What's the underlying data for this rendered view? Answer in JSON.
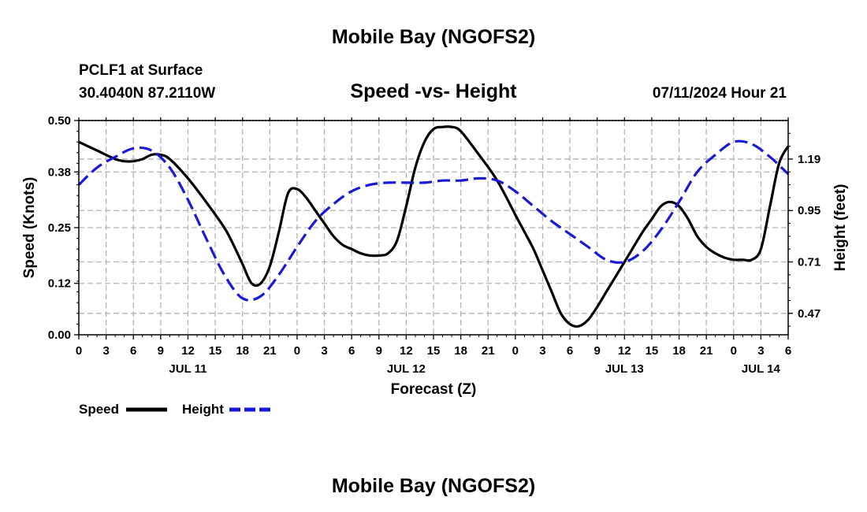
{
  "page": {
    "title_top": "Mobile Bay (NGOFS2)",
    "title_bottom": "Mobile Bay (NGOFS2)",
    "station": "PCLF1 at Surface",
    "coords": "30.4040N  87.2110W",
    "datetime": "07/11/2024 Hour 21"
  },
  "colors": {
    "speed": "#000000",
    "height": "#1a1ad6",
    "grid": "#b4b4b4"
  },
  "chart_data": {
    "type": "line",
    "title": "Speed -vs- Height",
    "xlabel": "Forecast (Z)",
    "ylabel_left": "Speed (Knots)",
    "ylabel_right": "Height (feet)",
    "x_range_hours": [
      0,
      78
    ],
    "x_tick_labels": [
      "0",
      "3",
      "6",
      "9",
      "12",
      "15",
      "18",
      "21",
      "0",
      "3",
      "6",
      "9",
      "12",
      "15",
      "18",
      "21",
      "0",
      "3",
      "6",
      "9",
      "12",
      "15",
      "18",
      "21",
      "0",
      "3",
      "6"
    ],
    "date_labels": [
      {
        "label": "JUL 11",
        "hour": 12
      },
      {
        "label": "JUL 12",
        "hour": 36
      },
      {
        "label": "JUL 13",
        "hour": 60
      },
      {
        "label": "JUL 14",
        "hour": 75
      }
    ],
    "y_left": {
      "range": [
        0.0,
        0.5
      ],
      "ticks": [
        0.0,
        0.12,
        0.25,
        0.38,
        0.5
      ],
      "tick_labels": [
        "0.00",
        "0.12",
        "0.25",
        "0.38",
        "0.50"
      ]
    },
    "y_right": {
      "range": [
        0.37,
        1.37
      ],
      "ticks": [
        0.47,
        0.71,
        0.95,
        1.19
      ],
      "tick_labels": [
        "0.47",
        "0.71",
        "0.95",
        "1.19"
      ]
    },
    "series": [
      {
        "name": "Speed",
        "axis": "left",
        "style": "solid",
        "x": [
          0,
          2,
          4,
          5,
          6,
          7,
          8,
          9,
          10,
          12,
          14,
          16,
          17,
          18,
          19,
          20,
          21,
          22,
          23,
          24,
          25,
          26,
          27,
          28,
          29,
          30,
          31,
          32,
          33,
          34,
          35,
          36,
          37,
          38,
          39,
          40,
          41,
          42,
          44,
          46,
          48,
          49,
          50,
          51,
          52,
          53,
          54,
          55,
          56,
          57,
          58,
          59,
          60,
          61,
          62,
          63,
          64,
          65,
          66,
          67,
          68,
          69,
          70,
          71,
          72,
          73,
          74,
          75,
          76,
          77,
          78
        ],
        "values": [
          0.45,
          0.43,
          0.41,
          0.405,
          0.405,
          0.41,
          0.42,
          0.42,
          0.41,
          0.365,
          0.31,
          0.25,
          0.21,
          0.165,
          0.12,
          0.12,
          0.16,
          0.24,
          0.33,
          0.34,
          0.32,
          0.29,
          0.26,
          0.23,
          0.21,
          0.2,
          0.19,
          0.185,
          0.185,
          0.19,
          0.22,
          0.3,
          0.39,
          0.45,
          0.48,
          0.485,
          0.485,
          0.475,
          0.42,
          0.36,
          0.28,
          0.24,
          0.2,
          0.15,
          0.1,
          0.05,
          0.025,
          0.02,
          0.035,
          0.065,
          0.1,
          0.135,
          0.17,
          0.205,
          0.24,
          0.27,
          0.3,
          0.31,
          0.3,
          0.27,
          0.23,
          0.205,
          0.19,
          0.18,
          0.175,
          0.175,
          0.175,
          0.2,
          0.3,
          0.4,
          0.44
        ]
      },
      {
        "name": "Height",
        "axis": "right",
        "style": "dashed",
        "x": [
          0,
          2,
          4,
          6,
          8,
          10,
          12,
          14,
          16,
          18,
          20,
          22,
          24,
          26,
          28,
          30,
          32,
          34,
          36,
          38,
          40,
          42,
          44,
          46,
          48,
          50,
          52,
          54,
          56,
          58,
          60,
          62,
          64,
          66,
          68,
          70,
          72,
          74,
          76,
          78
        ],
        "values": [
          1.07,
          1.15,
          1.2,
          1.24,
          1.23,
          1.15,
          1.0,
          0.82,
          0.65,
          0.54,
          0.55,
          0.65,
          0.78,
          0.9,
          0.98,
          1.04,
          1.07,
          1.08,
          1.08,
          1.08,
          1.09,
          1.09,
          1.1,
          1.09,
          1.04,
          0.97,
          0.9,
          0.84,
          0.78,
          0.72,
          0.71,
          0.76,
          0.86,
          0.99,
          1.13,
          1.21,
          1.27,
          1.26,
          1.2,
          1.12
        ]
      }
    ],
    "legend": [
      {
        "label": "Speed",
        "style": "solid"
      },
      {
        "label": "Height",
        "style": "dashed"
      }
    ],
    "legend_position": "bottom-left",
    "grid": true
  }
}
